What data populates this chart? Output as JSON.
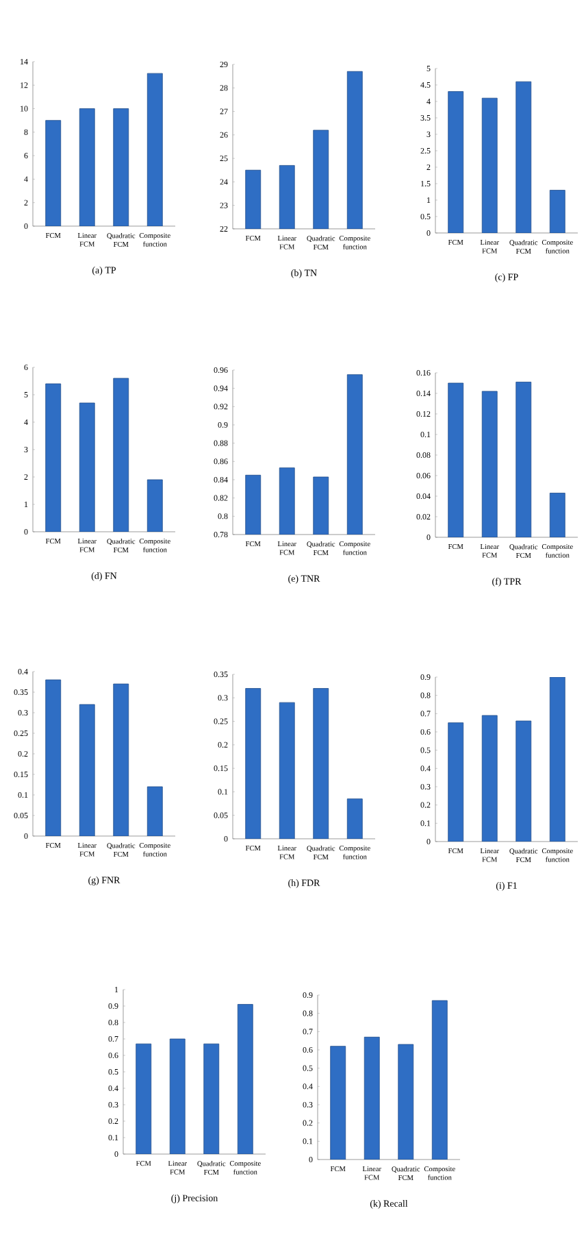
{
  "chart_data": [
    {
      "type": "bar",
      "title": "(a) TP",
      "categories": [
        "FCM",
        "Linear FCM",
        "Quadratic FCM",
        "Composite function"
      ],
      "values": [
        9,
        10,
        10,
        13
      ],
      "color": "#2f6ec4",
      "ylim": [
        0,
        14
      ],
      "yticks": [
        0,
        2,
        4,
        6,
        8,
        10,
        12,
        14
      ]
    },
    {
      "type": "bar",
      "title": "(b) TN",
      "categories": [
        "FCM",
        "Linear FCM",
        "Quadratic FCM",
        "Composite function"
      ],
      "values": [
        24.5,
        24.7,
        26.2,
        28.7
      ],
      "color": "#2f6ec4",
      "ylim": [
        22,
        29
      ],
      "yticks": [
        22,
        23,
        24,
        25,
        26,
        27,
        28,
        29
      ]
    },
    {
      "type": "bar",
      "title": "(c) FP",
      "categories": [
        "FCM",
        "Linear FCM",
        "Quadratic FCM",
        "Composite function"
      ],
      "values": [
        4.3,
        4.1,
        4.6,
        1.3
      ],
      "color": "#2f6ec4",
      "ylim": [
        0,
        5
      ],
      "yticks": [
        0,
        0.5,
        1,
        1.5,
        2,
        2.5,
        3,
        3.5,
        4,
        4.5,
        5
      ]
    },
    {
      "type": "bar",
      "title": "(d) FN",
      "categories": [
        "FCM",
        "Linear FCM",
        "Quadratic FCM",
        "Composite function"
      ],
      "values": [
        5.4,
        4.7,
        5.6,
        1.9
      ],
      "color": "#2f6ec4",
      "ylim": [
        0,
        6
      ],
      "yticks": [
        0,
        1,
        2,
        3,
        4,
        5,
        6
      ]
    },
    {
      "type": "bar",
      "title": "(e) TNR",
      "categories": [
        "FCM",
        "Linear FCM",
        "Quadratic FCM",
        "Composite function"
      ],
      "values": [
        0.845,
        0.853,
        0.843,
        0.955
      ],
      "color": "#2f6ec4",
      "ylim": [
        0.78,
        0.96
      ],
      "yticks": [
        0.78,
        0.8,
        0.82,
        0.84,
        0.86,
        0.88,
        0.9,
        0.92,
        0.94,
        0.96
      ]
    },
    {
      "type": "bar",
      "title": "(f) TPR",
      "categories": [
        "FCM",
        "Linear FCM",
        "Quadratic FCM",
        "Composite function"
      ],
      "values": [
        0.15,
        0.142,
        0.151,
        0.043
      ],
      "color": "#2f6ec4",
      "ylim": [
        0,
        0.16
      ],
      "yticks": [
        0,
        0.02,
        0.04,
        0.06,
        0.08,
        0.1,
        0.12,
        0.14,
        0.16
      ]
    },
    {
      "type": "bar",
      "title": "(g) FNR",
      "categories": [
        "FCM",
        "Linear FCM",
        "Quadratic FCM",
        "Composite function"
      ],
      "values": [
        0.38,
        0.32,
        0.37,
        0.12
      ],
      "color": "#2f6ec4",
      "ylim": [
        0,
        0.4
      ],
      "yticks": [
        0,
        0.05,
        0.1,
        0.15,
        0.2,
        0.25,
        0.3,
        0.35,
        0.4
      ]
    },
    {
      "type": "bar",
      "title": "(h) FDR",
      "categories": [
        "FCM",
        "Linear FCM",
        "Quadratic FCM",
        "Composite function"
      ],
      "values": [
        0.32,
        0.29,
        0.32,
        0.085
      ],
      "color": "#2f6ec4",
      "ylim": [
        0,
        0.35
      ],
      "yticks": [
        0,
        0.05,
        0.1,
        0.15,
        0.2,
        0.25,
        0.3,
        0.35
      ]
    },
    {
      "type": "bar",
      "title": "(i) F1",
      "categories": [
        "FCM",
        "Linear FCM",
        "Quadratic FCM",
        "Composite function"
      ],
      "values": [
        0.65,
        0.69,
        0.66,
        0.9
      ],
      "color": "#2f6ec4",
      "ylim": [
        0,
        0.9
      ],
      "yticks": [
        0,
        0.1,
        0.2,
        0.3,
        0.4,
        0.5,
        0.6,
        0.7,
        0.8,
        0.9
      ]
    },
    {
      "type": "bar",
      "title": "(j) Precision",
      "categories": [
        "FCM",
        "Linear FCM",
        "Quadratic FCM",
        "Composite function"
      ],
      "values": [
        0.67,
        0.7,
        0.67,
        0.91
      ],
      "color": "#2f6ec4",
      "ylim": [
        0,
        1
      ],
      "yticks": [
        0,
        0.1,
        0.2,
        0.3,
        0.4,
        0.5,
        0.6,
        0.7,
        0.8,
        0.9,
        1
      ]
    },
    {
      "type": "bar",
      "title": "(k) Recall",
      "categories": [
        "FCM",
        "Linear FCM",
        "Quadratic FCM",
        "Composite function"
      ],
      "values": [
        0.62,
        0.67,
        0.63,
        0.87
      ],
      "color": "#2f6ec4",
      "ylim": [
        0,
        0.9
      ],
      "yticks": [
        0,
        0.1,
        0.2,
        0.3,
        0.4,
        0.5,
        0.6,
        0.7,
        0.8,
        0.9
      ]
    }
  ]
}
